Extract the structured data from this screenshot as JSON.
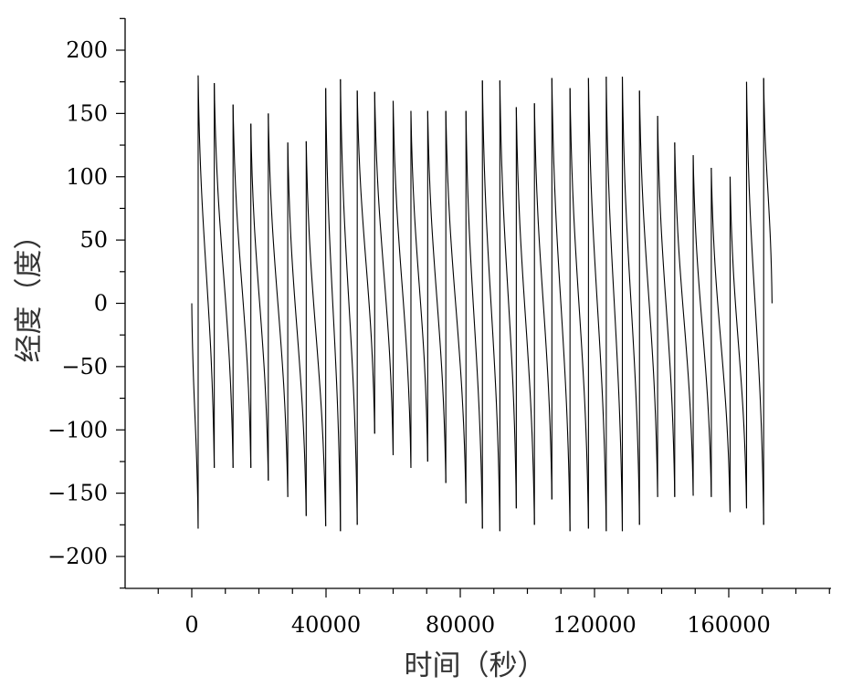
{
  "chart_data": {
    "type": "line",
    "xlabel": "时间（秒）",
    "ylabel": "经度（度）",
    "title": "",
    "xlim": [
      -20000,
      192000
    ],
    "ylim": [
      -225,
      225
    ],
    "xticks_major": [
      0,
      40000,
      80000,
      120000,
      160000
    ],
    "xticks_major_labels": [
      "0",
      "40000",
      "80000",
      "120000",
      "160000"
    ],
    "xtick_minor_step": 10000,
    "yticks_major": [
      -200,
      -150,
      -100,
      -50,
      0,
      50,
      100,
      150,
      200
    ],
    "yticks_major_labels": [
      "−200",
      "−150",
      "−100",
      "−50",
      "0",
      "50",
      "100",
      "150",
      "200"
    ],
    "ytick_minor_step": 25,
    "grid": false,
    "line_color": "#000000",
    "series": [
      {
        "segments": [
          {
            "x": [
              0,
              1900
            ],
            "y": [
              0,
              -178
            ]
          },
          {
            "x": [
              1900,
              6700
            ],
            "y": [
              180,
              -130
            ]
          },
          {
            "x": [
              6700,
              12300
            ],
            "y": [
              174,
              -130
            ]
          },
          {
            "x": [
              12300,
              17600
            ],
            "y": [
              157,
              -130
            ]
          },
          {
            "x": [
              17600,
              22800
            ],
            "y": [
              142,
              -140
            ]
          },
          {
            "x": [
              22800,
              28600
            ],
            "y": [
              150,
              -153
            ]
          },
          {
            "x": [
              28600,
              34100
            ],
            "y": [
              127,
              -168
            ]
          },
          {
            "x": [
              34100,
              39900
            ],
            "y": [
              128,
              -176
            ]
          },
          {
            "x": [
              39900,
              44300
            ],
            "y": [
              170,
              -180
            ]
          },
          {
            "x": [
              44300,
              49300
            ],
            "y": [
              177,
              -175
            ]
          },
          {
            "x": [
              49300,
              54500
            ],
            "y": [
              168,
              -103
            ]
          },
          {
            "x": [
              54500,
              60000
            ],
            "y": [
              167,
              -120
            ]
          },
          {
            "x": [
              60000,
              65300
            ],
            "y": [
              160,
              -130
            ]
          },
          {
            "x": [
              65300,
              70300
            ],
            "y": [
              152,
              -125
            ]
          },
          {
            "x": [
              70300,
              75700
            ],
            "y": [
              152,
              -142
            ]
          },
          {
            "x": [
              75700,
              81700
            ],
            "y": [
              152,
              -158
            ]
          },
          {
            "x": [
              81700,
              86600
            ],
            "y": [
              152,
              -178
            ]
          },
          {
            "x": [
              86600,
              91800
            ],
            "y": [
              176,
              -180
            ]
          },
          {
            "x": [
              91800,
              96700
            ],
            "y": [
              176,
              -162
            ]
          },
          {
            "x": [
              96700,
              102100
            ],
            "y": [
              155,
              -175
            ]
          },
          {
            "x": [
              102100,
              107300
            ],
            "y": [
              158,
              -155
            ]
          },
          {
            "x": [
              107300,
              112700
            ],
            "y": [
              178,
              -180
            ]
          },
          {
            "x": [
              112700,
              118200
            ],
            "y": [
              170,
              -178
            ]
          },
          {
            "x": [
              118200,
              123500
            ],
            "y": [
              178,
              -180
            ]
          },
          {
            "x": [
              123500,
              128300
            ],
            "y": [
              179,
              -180
            ]
          },
          {
            "x": [
              128300,
              133400
            ],
            "y": [
              179,
              -175
            ]
          },
          {
            "x": [
              133400,
              138800
            ],
            "y": [
              168,
              -153
            ]
          },
          {
            "x": [
              138800,
              143900
            ],
            "y": [
              148,
              -153
            ]
          },
          {
            "x": [
              143900,
              149400
            ],
            "y": [
              127,
              -152
            ]
          },
          {
            "x": [
              149400,
              154800
            ],
            "y": [
              117,
              -153
            ]
          },
          {
            "x": [
              154800,
              160400
            ],
            "y": [
              107,
              -165
            ]
          },
          {
            "x": [
              160400,
              165300
            ],
            "y": [
              100,
              -162
            ]
          },
          {
            "x": [
              165300,
              170400
            ],
            "y": [
              175,
              -175
            ]
          },
          {
            "x": [
              170400,
              172900
            ],
            "y": [
              178,
              0
            ]
          }
        ]
      }
    ]
  }
}
